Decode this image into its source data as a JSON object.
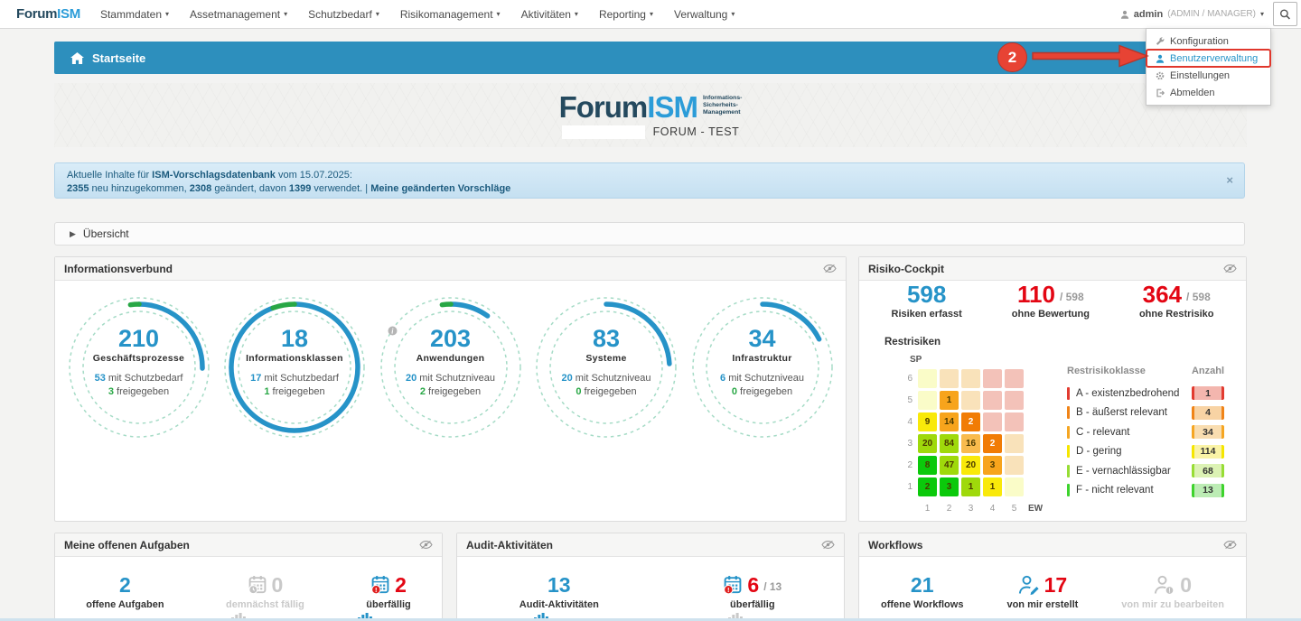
{
  "nav": {
    "brand": {
      "part1": "Forum",
      "part2": "ISM"
    },
    "items": [
      "Stammdaten",
      "Assetmanagement",
      "Schutzbedarf",
      "Risikomanagement",
      "Aktivitäten",
      "Reporting",
      "Verwaltung"
    ],
    "user": {
      "name": "admin",
      "roles": "(ADMIN / MANAGER)"
    }
  },
  "user_menu": {
    "items": [
      {
        "label": "Konfiguration",
        "icon": "wrench-icon",
        "highlighted": false
      },
      {
        "label": "Benutzerverwaltung",
        "icon": "user-icon",
        "highlighted": true
      },
      {
        "label": "Einstellungen",
        "icon": "gear-icon",
        "highlighted": false
      },
      {
        "label": "Abmelden",
        "icon": "sign-out-icon",
        "highlighted": false
      }
    ]
  },
  "annotation": {
    "step": "2"
  },
  "titlebar": {
    "label": "Startseite"
  },
  "masthead": {
    "logo_part1": "Forum",
    "logo_part2": "ISM",
    "logo_sub_lines": [
      "Informations-",
      "Sicherheits-",
      "Management"
    ],
    "environment": "FORUM - TEST"
  },
  "banner": {
    "line1": {
      "t1": "Aktuelle Inhalte für ",
      "b1": "ISM-Vorschlagsdatenbank",
      "t2": " vom 15.07.2025:"
    },
    "line2": {
      "b1": "2355",
      "t1": " neu hinzugekommen, ",
      "b2": "2308",
      "t2": " geändert, davon ",
      "b3": "1399",
      "t3": " verwendet. | ",
      "link": "Meine geänderten Vorschläge"
    },
    "close": "×"
  },
  "overview": {
    "label": "Übersicht"
  },
  "panels": {
    "informationsverbund": {
      "title": "Informationsverbund",
      "gauges": [
        {
          "total": 210,
          "label": "Geschäftsprozesse",
          "line1_num": 53,
          "line1_text": "mit Schutzbedarf",
          "line2_num": 3,
          "line2_text": "freigegeben",
          "info_icon": false
        },
        {
          "total": 18,
          "label": "Informationsklassen",
          "line1_num": 17,
          "line1_text": "mit Schutzbedarf",
          "line2_num": 1,
          "line2_text": "freigegeben",
          "info_icon": false
        },
        {
          "total": 203,
          "label": "Anwendungen",
          "line1_num": 20,
          "line1_text": "mit Schutzniveau",
          "line2_num": 2,
          "line2_text": "freigegeben",
          "info_icon": true
        },
        {
          "total": 83,
          "label": "Systeme",
          "line1_num": 20,
          "line1_text": "mit Schutzniveau",
          "line2_num": 0,
          "line2_text": "freigegeben",
          "info_icon": false
        },
        {
          "total": 34,
          "label": "Infrastruktur",
          "line1_num": 6,
          "line1_text": "mit Schutzniveau",
          "line2_num": 0,
          "line2_text": "freigegeben",
          "info_icon": false
        }
      ]
    },
    "risiko_cockpit": {
      "title": "Risiko-Cockpit",
      "stats": [
        {
          "value": "598",
          "suffix": "",
          "label": "Risiken erfasst",
          "style": "blue"
        },
        {
          "value": "110",
          "suffix": "/ 598",
          "label": "ohne Bewertung",
          "style": "red"
        },
        {
          "value": "364",
          "suffix": "/ 598",
          "label": "ohne Restrisiko",
          "style": "red"
        }
      ],
      "matrix": {
        "title": "Restrisiken",
        "y_label": "SP",
        "x_label": "EW",
        "row_labels": [
          "6",
          "5",
          "4",
          "3",
          "2",
          "1"
        ],
        "col_labels": [
          "1",
          "2",
          "3",
          "4",
          "5"
        ],
        "cells": [
          [
            {
              "v": "",
              "c": "py"
            },
            {
              "v": "",
              "c": "po"
            },
            {
              "v": "",
              "c": "po"
            },
            {
              "v": "",
              "c": "pp"
            },
            {
              "v": "",
              "c": "pp"
            }
          ],
          [
            {
              "v": "",
              "c": "py"
            },
            {
              "v": "1",
              "c": "o"
            },
            {
              "v": "",
              "c": "po"
            },
            {
              "v": "",
              "c": "pp"
            },
            {
              "v": "",
              "c": "pp"
            }
          ],
          [
            {
              "v": "9",
              "c": "y"
            },
            {
              "v": "14",
              "c": "o"
            },
            {
              "v": "2",
              "c": "do"
            },
            {
              "v": "",
              "c": "pp"
            },
            {
              "v": "",
              "c": "pp"
            }
          ],
          [
            {
              "v": "20",
              "c": "ch"
            },
            {
              "v": "84",
              "c": "ch"
            },
            {
              "v": "16",
              "c": "lo"
            },
            {
              "v": "2",
              "c": "do"
            },
            {
              "v": "",
              "c": "po"
            }
          ],
          [
            {
              "v": "8",
              "c": "g"
            },
            {
              "v": "47",
              "c": "ch"
            },
            {
              "v": "20",
              "c": "y"
            },
            {
              "v": "3",
              "c": "o"
            },
            {
              "v": "",
              "c": "po"
            }
          ],
          [
            {
              "v": "2",
              "c": "g"
            },
            {
              "v": "3",
              "c": "g"
            },
            {
              "v": "1",
              "c": "ch"
            },
            {
              "v": "1",
              "c": "y"
            },
            {
              "v": "",
              "c": "py"
            }
          ]
        ],
        "palette": {
          "g": "#0bc90b",
          "ch": "#9fd90b",
          "y": "#f9e90a",
          "lo": "#f9bb4d",
          "o": "#f7a41c",
          "do": "#f17c05",
          "py": "#fafcc8",
          "po": "#f9e2ba",
          "pp": "#f3c2b9"
        }
      },
      "legend": {
        "headers": [
          "Restrisikoklasse",
          "Anzahl"
        ],
        "rows": [
          {
            "label": "A - existenzbedrohend",
            "count": "1",
            "color": "#e23b30",
            "bg": "#f3b6ae"
          },
          {
            "label": "B - äußerst relevant",
            "count": "4",
            "color": "#f08418",
            "bg": "#f8d3a4"
          },
          {
            "label": "C - relevant",
            "count": "34",
            "color": "#f5a623",
            "bg": "#f9ddb0"
          },
          {
            "label": "D - gering",
            "count": "114",
            "color": "#f5e600",
            "bg": "#faf3a6"
          },
          {
            "label": "E - vernachlässigbar",
            "count": "68",
            "color": "#97dd35",
            "bg": "#dcf2b4"
          },
          {
            "label": "F - nicht relevant",
            "count": "13",
            "color": "#3ed32d",
            "bg": "#bcecb4"
          }
        ]
      }
    },
    "aufgaben": {
      "title": "Meine offenen Aufgaben",
      "stats": [
        {
          "value": "2",
          "suffix": "",
          "label": "offene Aufgaben",
          "style": "blue",
          "icon": ""
        },
        {
          "value": "0",
          "suffix": "",
          "label": "demnächst fällig",
          "style": "muted",
          "icon": "calendar-clock-icon"
        },
        {
          "value": "2",
          "suffix": "",
          "label": "überfällig",
          "style": "red",
          "icon": "calendar-alert-icon"
        }
      ]
    },
    "audit": {
      "title": "Audit-Aktivitäten",
      "stats": [
        {
          "value": "13",
          "suffix": "",
          "label": "Audit-Aktivitäten",
          "style": "blue",
          "icon": ""
        },
        {
          "value": "6",
          "suffix": "/ 13",
          "label": "überfällig",
          "style": "red",
          "icon": "calendar-alert-icon"
        }
      ]
    },
    "workflows": {
      "title": "Workflows",
      "stats": [
        {
          "value": "21",
          "suffix": "",
          "label": "offene Workflows",
          "style": "blue",
          "icon": ""
        },
        {
          "value": "17",
          "suffix": "",
          "label": "von mir erstellt",
          "style": "red",
          "icon": "user-edit-icon"
        },
        {
          "value": "0",
          "suffix": "",
          "label": "von mir zu bearbeiten",
          "style": "muted",
          "icon": "user-alert-icon"
        }
      ]
    }
  },
  "colors": {
    "accent_blue": "#2693c8",
    "alert_red": "#e30613",
    "green": "#28a745",
    "titlebar_blue": "#2d8fbd",
    "annotation_red": "#e74334",
    "muted_gray": "#c9c9c9"
  }
}
